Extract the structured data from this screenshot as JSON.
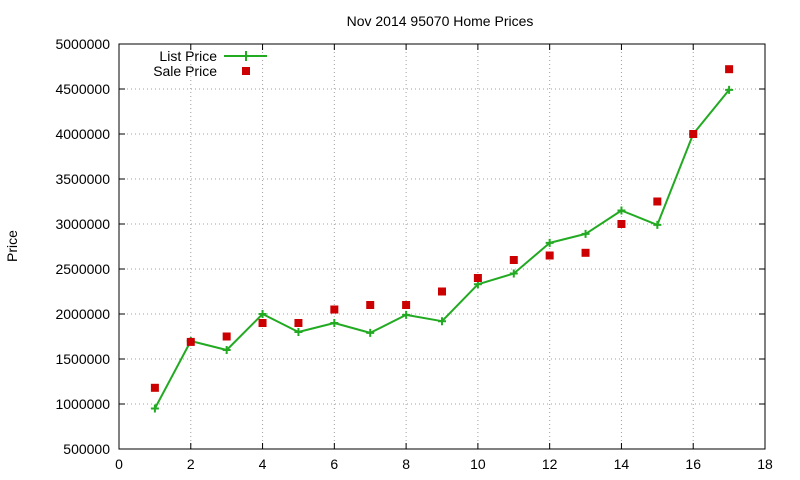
{
  "chart_data": {
    "type": "line",
    "title": "Nov 2014 95070 Home Prices",
    "xlabel": "",
    "ylabel": "Price",
    "xlim": [
      0,
      18
    ],
    "ylim": [
      500000,
      5000000
    ],
    "xticks": [
      0,
      2,
      4,
      6,
      8,
      10,
      12,
      14,
      16,
      18
    ],
    "yticks": [
      500000,
      1000000,
      1500000,
      2000000,
      2500000,
      3000000,
      3500000,
      4000000,
      4500000,
      5000000
    ],
    "grid": true,
    "legend_position": "top-left",
    "series": [
      {
        "name": "List Price",
        "style": "line-plus",
        "color": "#22aa22",
        "x": [
          1,
          2,
          3,
          4,
          5,
          6,
          7,
          8,
          9,
          10,
          11,
          12,
          13,
          14,
          15,
          16,
          17
        ],
        "values": [
          950000,
          1700000,
          1600000,
          2000000,
          1800000,
          1900000,
          1790000,
          1990000,
          1920000,
          2330000,
          2450000,
          2790000,
          2890000,
          3150000,
          2990000,
          4000000,
          4490000
        ]
      },
      {
        "name": "Sale Price",
        "style": "square-points",
        "color": "#cc0000",
        "x": [
          1,
          2,
          3,
          4,
          5,
          6,
          7,
          8,
          9,
          10,
          11,
          12,
          13,
          14,
          15,
          16,
          17
        ],
        "values": [
          1180000,
          1690000,
          1750000,
          1900000,
          1900000,
          2050000,
          2100000,
          2100000,
          2250000,
          2400000,
          2600000,
          2650000,
          2680000,
          3000000,
          3250000,
          4000000,
          4720000
        ]
      }
    ]
  }
}
